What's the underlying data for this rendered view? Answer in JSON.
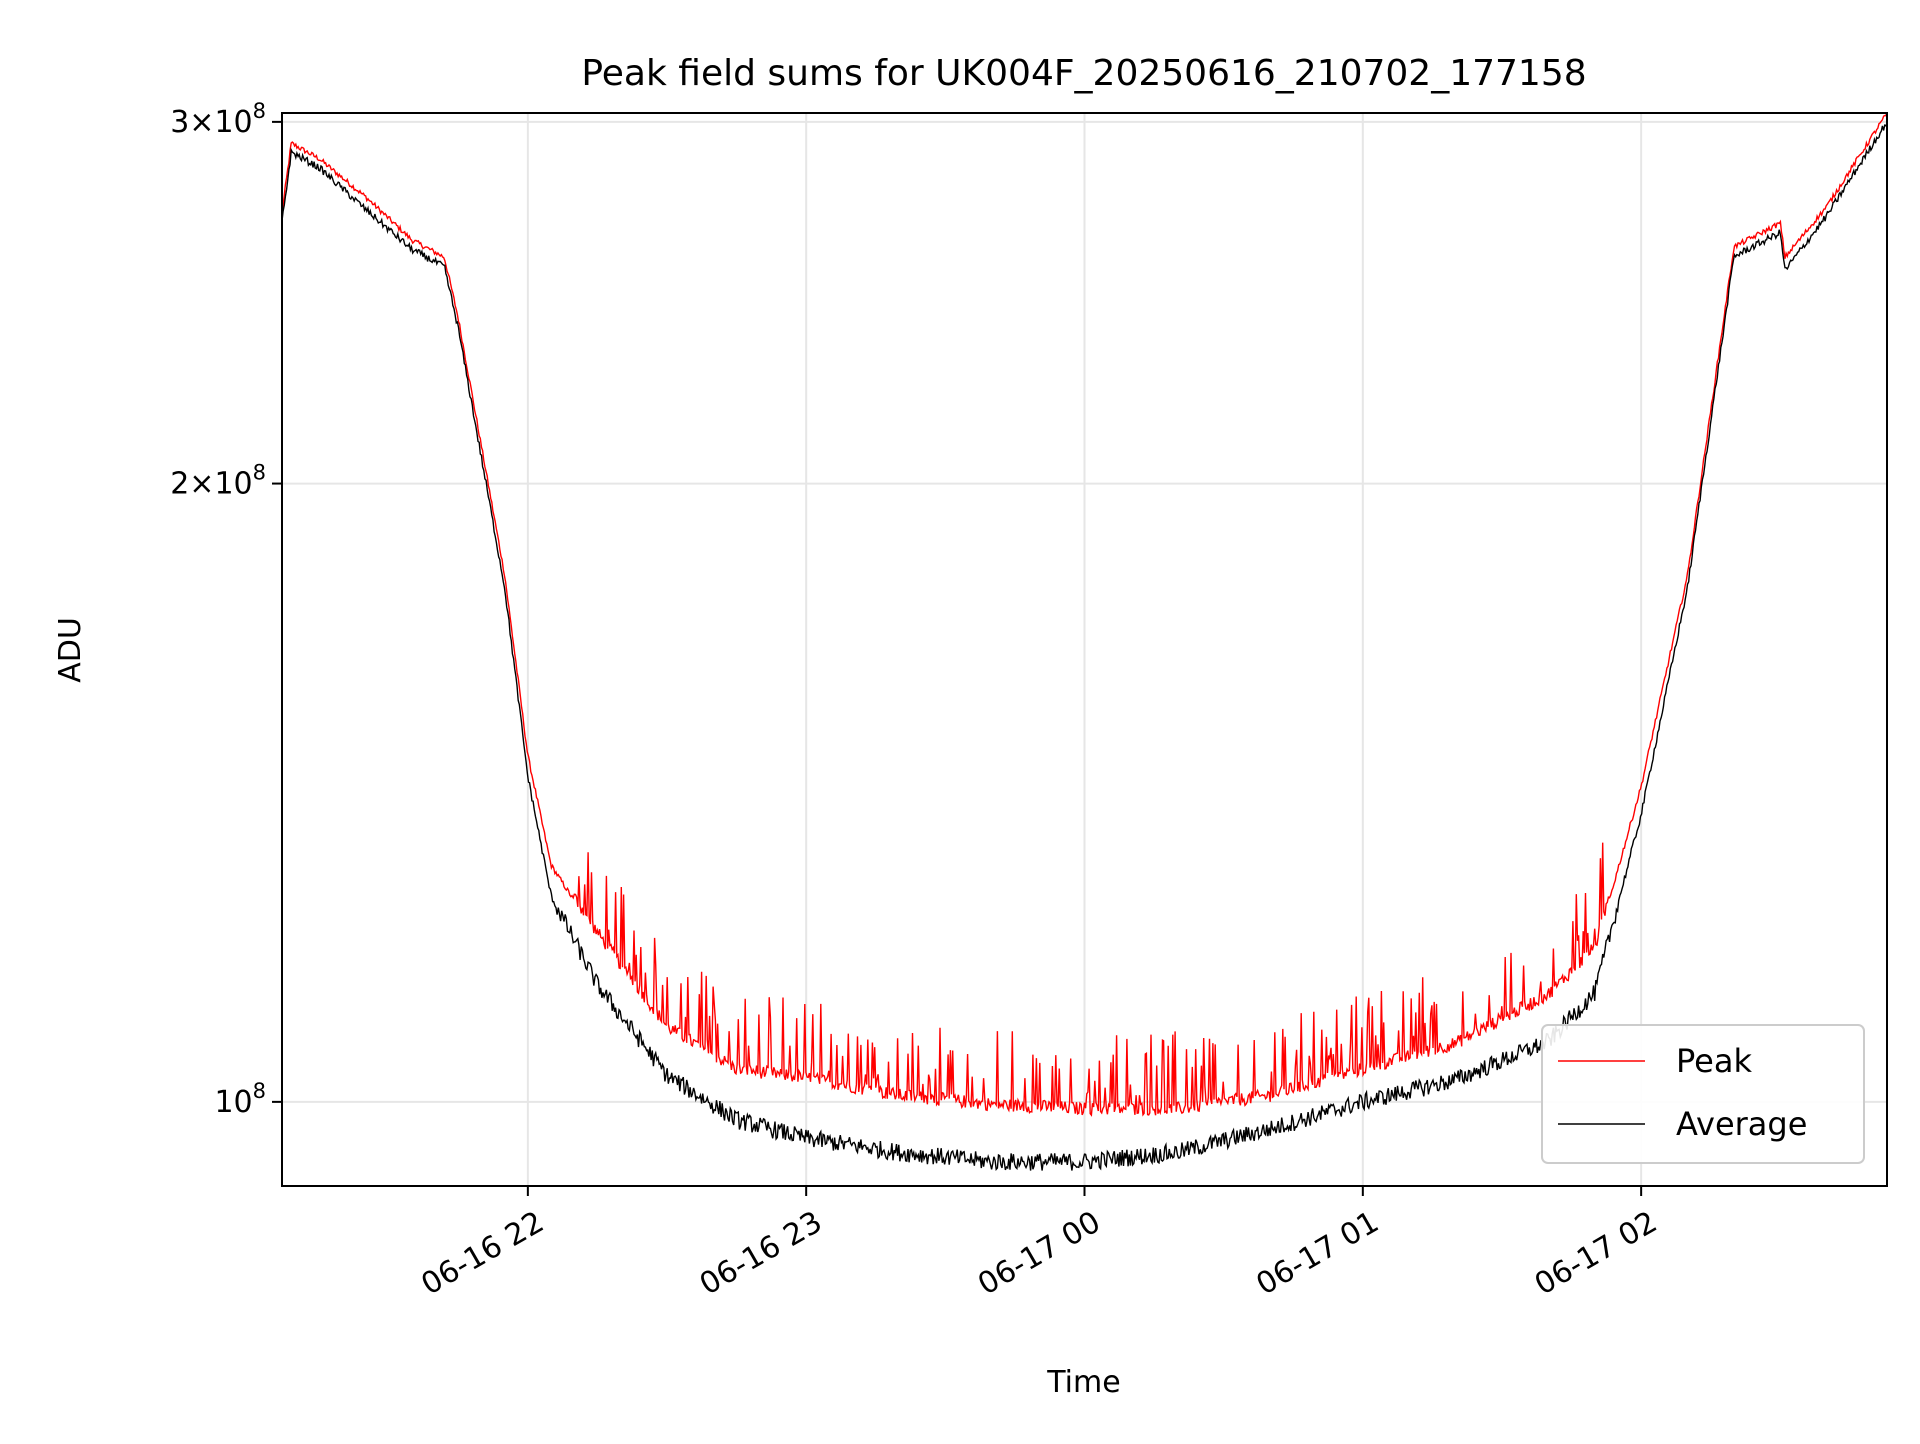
{
  "chart_data": {
    "type": "line",
    "title": "Peak field sums for UK004F_20250616_210702_177158",
    "xlabel": "Time",
    "ylabel": "ADU",
    "yscale": "log",
    "grid": true,
    "legend_position": "lower-right",
    "xlim": [
      "2025-06-16 21:07",
      "2025-06-17 02:53"
    ],
    "ylim": [
      91000000,
      303000000
    ],
    "x_ticks": [
      "2025-06-16 22:00",
      "2025-06-16 23:00",
      "2025-06-17 00:00",
      "2025-06-17 01:00",
      "2025-06-17 02:00"
    ],
    "x_tick_labels": [
      "06-16 22",
      "06-16 23",
      "06-17 00",
      "06-17 01",
      "06-17 02"
    ],
    "y_ticks": [
      {
        "value": 300000000,
        "mantissa": "3",
        "exp": "8"
      },
      {
        "value": 200000000,
        "mantissa": "2",
        "exp": "8"
      },
      {
        "value": 100000000,
        "mantissa": "",
        "exp": "8"
      }
    ],
    "series": [
      {
        "name": "Peak",
        "color": "#ff0000",
        "x": [
          "2025-06-16 21:07",
          "2025-06-16 21:09",
          "2025-06-16 21:15",
          "2025-06-16 21:25",
          "2025-06-16 21:35",
          "2025-06-16 21:42",
          "2025-06-16 21:45",
          "2025-06-16 21:55",
          "2025-06-16 22:00",
          "2025-06-16 22:05",
          "2025-06-16 22:15",
          "2025-06-16 22:30",
          "2025-06-16 22:45",
          "2025-06-16 23:00",
          "2025-06-16 23:20",
          "2025-06-16 23:40",
          "2025-06-17 00:00",
          "2025-06-17 00:20",
          "2025-06-17 00:40",
          "2025-06-17 01:00",
          "2025-06-17 01:20",
          "2025-06-17 01:40",
          "2025-06-17 01:50",
          "2025-06-17 02:00",
          "2025-06-17 02:10",
          "2025-06-17 02:20",
          "2025-06-17 02:30",
          "2025-06-17 02:31",
          "2025-06-17 02:40",
          "2025-06-17 02:53"
        ],
        "y": [
          270000000,
          292000000,
          287000000,
          275000000,
          262000000,
          257000000,
          240000000,
          180000000,
          147000000,
          130000000,
          120000000,
          108000000,
          103000000,
          102000000,
          100000000,
          99000000,
          98500000,
          98500000,
          100000000,
          103000000,
          106000000,
          112000000,
          118000000,
          142000000,
          180000000,
          260000000,
          267000000,
          257000000,
          272000000,
          302000000
        ]
      },
      {
        "name": "Average",
        "color": "#000000",
        "x": [
          "2025-06-16 21:07",
          "2025-06-16 21:09",
          "2025-06-16 21:15",
          "2025-06-16 21:25",
          "2025-06-16 21:35",
          "2025-06-16 21:42",
          "2025-06-16 21:45",
          "2025-06-16 21:55",
          "2025-06-16 22:00",
          "2025-06-16 22:05",
          "2025-06-16 22:15",
          "2025-06-16 22:30",
          "2025-06-16 22:45",
          "2025-06-16 23:00",
          "2025-06-16 23:20",
          "2025-06-16 23:40",
          "2025-06-17 00:00",
          "2025-06-17 00:20",
          "2025-06-17 00:40",
          "2025-06-17 01:00",
          "2025-06-17 01:20",
          "2025-06-17 01:40",
          "2025-06-17 01:50",
          "2025-06-17 02:00",
          "2025-06-17 02:10",
          "2025-06-17 02:20",
          "2025-06-17 02:30",
          "2025-06-17 02:31",
          "2025-06-17 02:40",
          "2025-06-17 02:53"
        ],
        "y": [
          268000000,
          290000000,
          285000000,
          272000000,
          260000000,
          255000000,
          238000000,
          178000000,
          144000000,
          126000000,
          114000000,
          103000000,
          98000000,
          96000000,
          94500000,
          93500000,
          93500000,
          94500000,
          97000000,
          100000000,
          102500000,
          107000000,
          113000000,
          138000000,
          178000000,
          258000000,
          265000000,
          254000000,
          270000000,
          300000000
        ]
      }
    ]
  }
}
